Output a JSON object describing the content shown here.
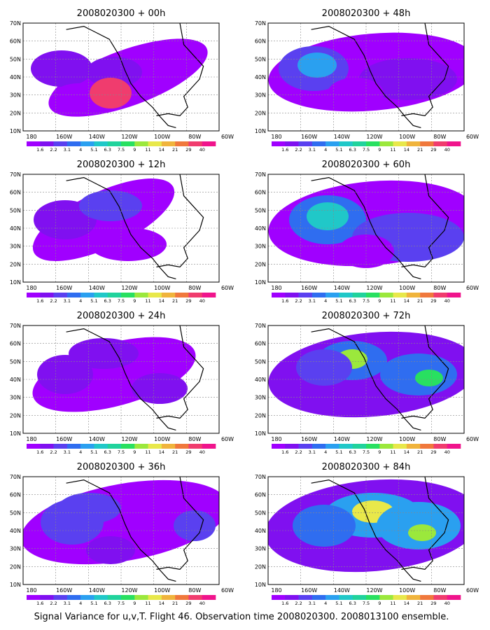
{
  "caption": "Signal Variance for u,v,T. Flight 46. Observation time 2008020300. 2008013100 ensemble.",
  "lat_labels": [
    "70N",
    "60N",
    "50N",
    "40N",
    "30N",
    "20N",
    "10N"
  ],
  "lon_labels": [
    "180",
    "160W",
    "140W",
    "120W",
    "100W",
    "80W",
    "60W"
  ],
  "colorbar": {
    "labels": [
      "1.6",
      "2.2",
      "3.1",
      "4",
      "5.1",
      "6.3",
      "7.5",
      "9",
      "11",
      "14",
      "21",
      "29",
      "40"
    ],
    "colors": [
      "#a000ff",
      "#8010f0",
      "#5a40f0",
      "#2f6df0",
      "#2aa0f0",
      "#20c8c8",
      "#20d39c",
      "#28e060",
      "#9be83c",
      "#e8e84a",
      "#f0b43c",
      "#f0783c",
      "#f03c6e",
      "#f0148c"
    ]
  },
  "panels": [
    {
      "title": "2008020300 + 00h"
    },
    {
      "title": "2008020300 + 48h"
    },
    {
      "title": "2008020300 + 12h"
    },
    {
      "title": "2008020300 + 60h"
    },
    {
      "title": "2008020300 + 24h"
    },
    {
      "title": "2008020300 + 72h"
    },
    {
      "title": "2008020300 + 36h"
    },
    {
      "title": "2008020300 + 84h"
    }
  ]
}
